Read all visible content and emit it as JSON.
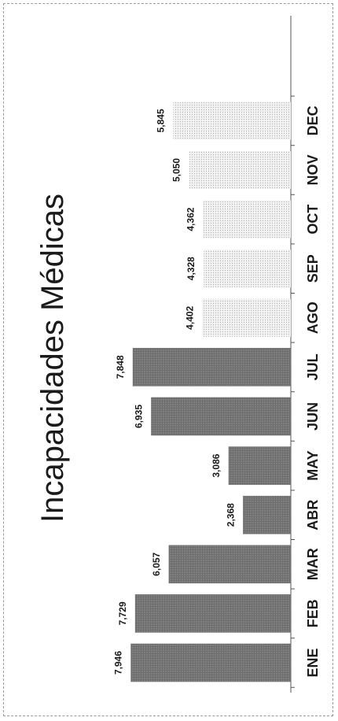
{
  "chart_data": {
    "type": "bar",
    "orientation": "vertical (page rotated 90° counter-clockwise)",
    "title": "Incapacidades Médicas",
    "xlabel": "",
    "ylabel": "",
    "categories": [
      "ENE",
      "FEB",
      "MAR",
      "ABR",
      "MAY",
      "JUN",
      "JUL",
      "AGO",
      "SEP",
      "OCT",
      "NOV",
      "DEC"
    ],
    "values": [
      7946,
      7729,
      6057,
      2368,
      3086,
      6935,
      7848,
      4402,
      4328,
      4362,
      5050,
      5845
    ],
    "value_labels": [
      "7,946",
      "7,729",
      "6,057",
      "2,368",
      "3,086",
      "6,935",
      "7,848",
      "4,402",
      "4,328",
      "4,362",
      "5,050",
      "5,845"
    ],
    "ylim": [
      0,
      10000
    ],
    "grid": false,
    "legend": "none",
    "colors": {
      "solid": "#6e6e6e",
      "light": "#e6e6e6",
      "text": "#1a1a1a",
      "axis": "#555555"
    },
    "bar_styles": [
      "solid",
      "solid",
      "solid",
      "solid",
      "solid",
      "solid",
      "solid",
      "light",
      "light",
      "light",
      "light",
      "light"
    ]
  }
}
